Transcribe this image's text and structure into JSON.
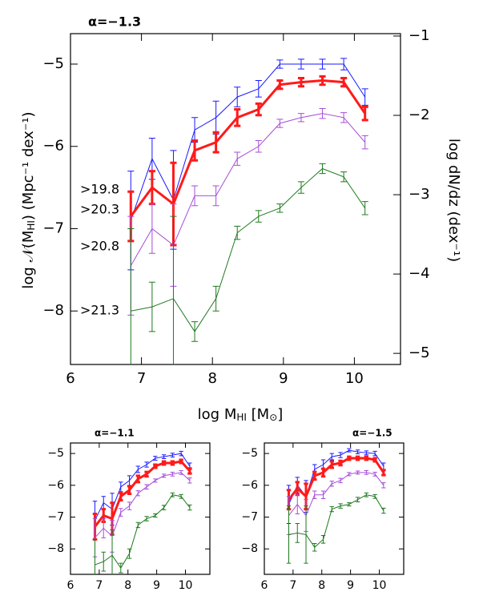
{
  "chart_data": [
    {
      "type": "line",
      "title": "α=−1.3",
      "xlabel": [
        "log M",
        "HI",
        " [M",
        "⊙",
        "]"
      ],
      "ylabel": [
        "log 𝒩(M",
        "HI",
        ")  (Mpc⁻¹ dex⁻¹)"
      ],
      "y2label": "log dN/dz  (dex⁻¹)",
      "x": [
        6.85,
        7.15,
        7.45,
        7.75,
        8.05,
        8.35,
        8.65,
        8.95,
        9.25,
        9.55,
        9.85,
        10.15
      ],
      "xlim": [
        6,
        10.65
      ],
      "xticks": [
        6,
        7,
        8,
        9,
        10
      ],
      "ylim": [
        -8.65,
        -4.63
      ],
      "yticks": [
        {
          "value": -8,
          "label": "−8"
        },
        {
          "value": -7,
          "label": "−7"
        },
        {
          "value": -6,
          "label": "−6"
        },
        {
          "value": -5,
          "label": "−5"
        }
      ],
      "y2lim": [
        -5.14,
        -0.97
      ],
      "y2ticks": [
        {
          "value": -5,
          "label": "−5"
        },
        {
          "value": -4,
          "label": "−4"
        },
        {
          "value": -3,
          "label": "−3"
        },
        {
          "value": -2,
          "label": "−2"
        },
        {
          "value": -1,
          "label": "−1"
        }
      ],
      "series": [
        {
          "name": ">19.8",
          "color": "#1a1aff",
          "width": 1,
          "values": [
            -6.9,
            -6.15,
            -6.65,
            -5.8,
            -5.65,
            -5.4,
            -5.3,
            -5.0,
            -5.0,
            -5.0,
            -5.0,
            -5.4
          ],
          "errors": [
            0.6,
            0.25,
            0.6,
            0.15,
            0.2,
            0.12,
            0.1,
            0.05,
            0.06,
            0.06,
            0.07,
            0.1
          ]
        },
        {
          "name": ">20.3",
          "color": "#ff1a1a",
          "width": 3,
          "values": [
            -6.85,
            -6.5,
            -6.7,
            -6.05,
            -5.95,
            -5.65,
            -5.55,
            -5.25,
            -5.22,
            -5.2,
            -5.22,
            -5.6
          ],
          "errors": [
            0.3,
            0.2,
            0.5,
            0.12,
            0.12,
            0.1,
            0.07,
            0.05,
            0.05,
            0.05,
            0.05,
            0.08
          ]
        },
        {
          "name": ">20.8",
          "color": "#a64dd9",
          "width": 1,
          "values": [
            -7.45,
            -7.0,
            -7.2,
            -6.6,
            -6.6,
            -6.15,
            -6.0,
            -5.72,
            -5.65,
            -5.6,
            -5.65,
            -5.95
          ],
          "errors": [
            0.6,
            0.3,
            0.5,
            0.12,
            0.12,
            0.08,
            0.07,
            0.05,
            0.05,
            0.06,
            0.06,
            0.08
          ]
        },
        {
          "name": ">21.3",
          "color": "#1f7a1f",
          "width": 1,
          "values": [
            -8.0,
            -7.95,
            -7.85,
            -8.25,
            -7.85,
            -7.05,
            -6.85,
            -6.75,
            -6.5,
            -6.27,
            -6.37,
            -6.75
          ],
          "errors": [
            1.0,
            0.3,
            1.0,
            0.12,
            0.15,
            0.08,
            0.07,
            0.05,
            0.07,
            0.06,
            0.06,
            0.08
          ]
        }
      ]
    },
    {
      "type": "line",
      "title": "α=−1.1",
      "x": [
        6.85,
        7.15,
        7.45,
        7.75,
        8.05,
        8.35,
        8.65,
        8.95,
        9.25,
        9.55,
        9.85,
        10.15
      ],
      "xlim": [
        6,
        10.85
      ],
      "xticks": [
        6,
        7,
        8,
        9,
        10
      ],
      "ylim": [
        -8.8,
        -4.67
      ],
      "yticks": [
        {
          "value": -8,
          "label": "−8"
        },
        {
          "value": -7,
          "label": "−7"
        },
        {
          "value": -6,
          "label": "−6"
        },
        {
          "value": -5,
          "label": "−5"
        }
      ],
      "series": [
        {
          "color": "#1a1aff",
          "width": 1,
          "values": [
            -7.1,
            -6.55,
            -6.75,
            -6.05,
            -5.85,
            -5.5,
            -5.35,
            -5.15,
            -5.1,
            -5.05,
            -5.0,
            -5.4
          ],
          "errors": [
            0.6,
            0.2,
            0.5,
            0.15,
            0.15,
            0.1,
            0.08,
            0.06,
            0.06,
            0.06,
            0.07,
            0.1
          ]
        },
        {
          "color": "#ff1a1a",
          "width": 3,
          "values": [
            -7.3,
            -6.95,
            -7.05,
            -6.35,
            -6.15,
            -5.8,
            -5.65,
            -5.4,
            -5.3,
            -5.3,
            -5.25,
            -5.55
          ],
          "errors": [
            0.4,
            0.2,
            0.5,
            0.12,
            0.12,
            0.1,
            0.07,
            0.05,
            0.05,
            0.05,
            0.05,
            0.08
          ]
        },
        {
          "color": "#a64dd9",
          "width": 1,
          "values": [
            -7.65,
            -7.35,
            -7.6,
            -6.85,
            -6.65,
            -6.25,
            -6.05,
            -5.85,
            -5.7,
            -5.65,
            -5.6,
            -5.85
          ],
          "errors": [
            0.6,
            0.3,
            0.5,
            0.12,
            0.12,
            0.08,
            0.07,
            0.05,
            0.05,
            0.06,
            0.06,
            0.08
          ]
        },
        {
          "color": "#1f7a1f",
          "width": 1,
          "values": [
            -8.5,
            -8.4,
            -8.2,
            -8.6,
            -8.15,
            -7.25,
            -7.05,
            -6.95,
            -6.7,
            -6.3,
            -6.35,
            -6.7
          ],
          "errors": [
            0.8,
            0.3,
            0.8,
            0.15,
            0.15,
            0.08,
            0.07,
            0.05,
            0.07,
            0.06,
            0.06,
            0.08
          ]
        }
      ]
    },
    {
      "type": "line",
      "title": "α=−1.5",
      "x": [
        6.85,
        7.15,
        7.45,
        7.75,
        8.05,
        8.35,
        8.65,
        8.95,
        9.25,
        9.55,
        9.85,
        10.15
      ],
      "xlim": [
        6,
        10.85
      ],
      "xticks": [
        6,
        7,
        8,
        9,
        10
      ],
      "ylim": [
        -8.8,
        -4.67
      ],
      "yticks": [
        {
          "value": -8,
          "label": "−8"
        },
        {
          "value": -7,
          "label": "−7"
        },
        {
          "value": -6,
          "label": "−6"
        },
        {
          "value": -5,
          "label": "−5"
        }
      ],
      "series": [
        {
          "color": "#1a1aff",
          "width": 1,
          "values": [
            -6.6,
            -6.0,
            -6.35,
            -5.5,
            -5.35,
            -5.1,
            -5.05,
            -4.9,
            -4.95,
            -4.98,
            -5.0,
            -5.4
          ],
          "errors": [
            0.6,
            0.25,
            0.5,
            0.15,
            0.15,
            0.1,
            0.08,
            0.05,
            0.06,
            0.06,
            0.07,
            0.1
          ]
        },
        {
          "color": "#ff1a1a",
          "width": 3,
          "values": [
            -6.45,
            -6.1,
            -6.35,
            -5.7,
            -5.6,
            -5.35,
            -5.3,
            -5.15,
            -5.15,
            -5.15,
            -5.2,
            -5.6
          ],
          "errors": [
            0.3,
            0.2,
            0.4,
            0.12,
            0.12,
            0.1,
            0.07,
            0.05,
            0.05,
            0.05,
            0.05,
            0.08
          ]
        },
        {
          "color": "#a64dd9",
          "width": 1,
          "values": [
            -6.95,
            -6.6,
            -6.95,
            -6.3,
            -6.3,
            -5.95,
            -5.85,
            -5.65,
            -5.6,
            -5.6,
            -5.65,
            -6.0
          ],
          "errors": [
            0.6,
            0.3,
            0.5,
            0.12,
            0.12,
            0.08,
            0.07,
            0.05,
            0.05,
            0.06,
            0.06,
            0.08
          ]
        },
        {
          "color": "#1f7a1f",
          "width": 1,
          "values": [
            -7.55,
            -7.5,
            -7.55,
            -7.95,
            -7.7,
            -6.75,
            -6.65,
            -6.6,
            -6.45,
            -6.3,
            -6.35,
            -6.8
          ],
          "errors": [
            0.9,
            0.3,
            0.9,
            0.12,
            0.12,
            0.08,
            0.07,
            0.05,
            0.07,
            0.06,
            0.06,
            0.08
          ]
        }
      ]
    }
  ]
}
